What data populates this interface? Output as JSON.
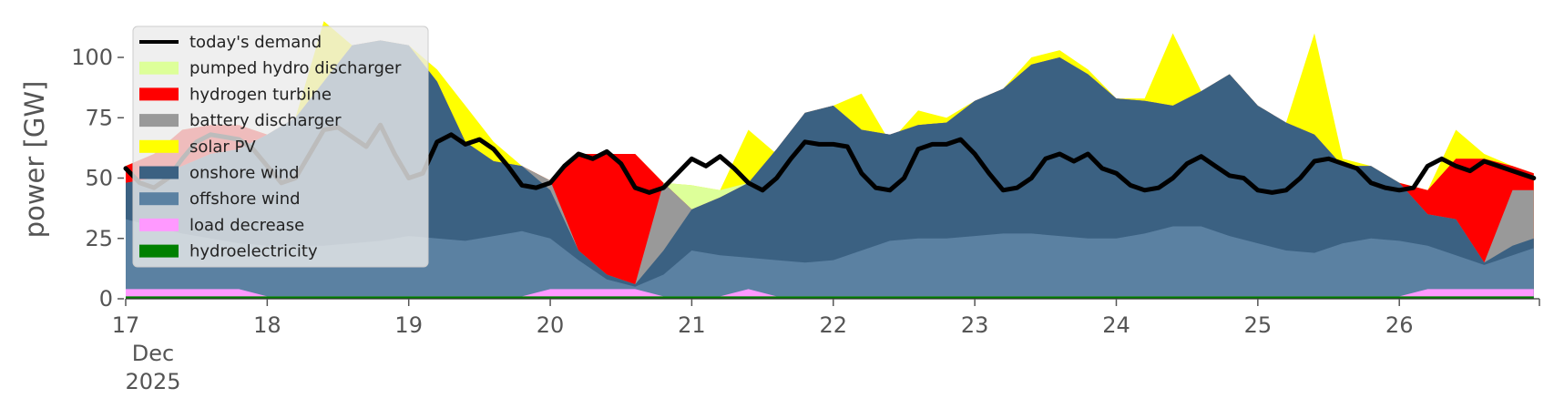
{
  "chart_data": {
    "type": "area",
    "ylabel": "power [GW]",
    "ylim": [
      0,
      120
    ],
    "xlim": [
      "2025-12-17T00:00",
      "2025-12-26T23:59"
    ],
    "y_ticks": [
      "0",
      "25",
      "50",
      "75",
      "100"
    ],
    "x_ticks": [
      "17",
      "18",
      "19",
      "20",
      "21",
      "22",
      "23",
      "24",
      "25",
      "26"
    ],
    "x_first_tick_extra": [
      "Dec",
      "2025"
    ],
    "grid": false,
    "legend": {
      "placement": "top-left",
      "entries": [
        {
          "label": "today's demand",
          "color": "#000000",
          "kind": "line"
        },
        {
          "label": "pumped hydro discharger",
          "color": "#ddff99",
          "kind": "patch"
        },
        {
          "label": "hydrogen turbine",
          "color": "#ff0000",
          "kind": "patch"
        },
        {
          "label": "battery discharger",
          "color": "#999999",
          "kind": "patch"
        },
        {
          "label": "solar PV",
          "color": "#ffff00",
          "kind": "patch"
        },
        {
          "label": "onshore wind",
          "color": "#3b6182",
          "kind": "patch"
        },
        {
          "label": "offshore wind",
          "color": "#5b81a2",
          "kind": "patch"
        },
        {
          "label": "load decrease",
          "color": "#ff99ff",
          "kind": "patch"
        },
        {
          "label": "hydroelectricity",
          "color": "#008000",
          "kind": "patch"
        }
      ]
    },
    "stack_tops_x_days": [
      0,
      0.2,
      0.4,
      0.6,
      0.8,
      1.0,
      1.2,
      1.4,
      1.6,
      1.8,
      2.0,
      2.2,
      2.4,
      2.6,
      2.8,
      3.0,
      3.2,
      3.4,
      3.6,
      3.8,
      4.0,
      4.2,
      4.4,
      4.6,
      4.8,
      5.0,
      5.2,
      5.4,
      5.6,
      5.8,
      6.0,
      6.2,
      6.4,
      6.6,
      6.8,
      7.0,
      7.2,
      7.4,
      7.6,
      7.8,
      8.0,
      8.2,
      8.4,
      8.6,
      8.8,
      9.0,
      9.2,
      9.4,
      9.6,
      9.8,
      9.95
    ],
    "series": [
      {
        "name": "hydroelectricity",
        "color": "#008000",
        "values": [
          1,
          1,
          1,
          1,
          1,
          1,
          1,
          1,
          1,
          1,
          1,
          1,
          1,
          1,
          1,
          1,
          1,
          1,
          1,
          1,
          1,
          1,
          1,
          1,
          1,
          1,
          1,
          1,
          1,
          1,
          1,
          1,
          1,
          1,
          1,
          1,
          1,
          1,
          1,
          1,
          1,
          1,
          1,
          1,
          1,
          1,
          1,
          1,
          1,
          1,
          1
        ]
      },
      {
        "name": "load decrease",
        "color": "#ff99ff",
        "values": [
          4,
          4,
          4,
          4,
          4,
          1,
          1,
          1,
          1,
          1,
          1,
          1,
          1,
          1,
          1,
          4,
          4,
          4,
          4,
          1,
          1,
          1,
          4,
          1,
          1,
          1,
          1,
          1,
          1,
          1,
          1,
          1,
          1,
          1,
          1,
          1,
          1,
          1,
          1,
          1,
          1,
          1,
          1,
          1,
          1,
          1,
          4,
          4,
          4,
          4,
          4
        ]
      },
      {
        "name": "offshore wind",
        "color": "#5b81a2",
        "values": [
          33,
          30,
          27,
          25,
          23,
          22,
          22,
          22,
          23,
          24,
          26,
          25,
          24,
          26,
          28,
          25,
          16,
          8,
          5,
          10,
          20,
          18,
          17,
          16,
          15,
          16,
          20,
          24,
          25,
          25,
          26,
          27,
          27,
          26,
          25,
          25,
          27,
          30,
          30,
          26,
          23,
          20,
          19,
          23,
          25,
          24,
          22,
          18,
          14,
          18,
          21
        ]
      },
      {
        "name": "onshore wind",
        "color": "#3b6182",
        "values": [
          48,
          50,
          55,
          60,
          62,
          68,
          75,
          90,
          105,
          107,
          105,
          90,
          65,
          57,
          55,
          45,
          20,
          10,
          6,
          20,
          37,
          42,
          48,
          62,
          77,
          80,
          70,
          68,
          72,
          73,
          82,
          87,
          97,
          100,
          93,
          83,
          82,
          80,
          86,
          93,
          80,
          73,
          68,
          55,
          55,
          48,
          35,
          33,
          15,
          22,
          25
        ]
      },
      {
        "name": "battery discharger",
        "color": "#999999",
        "values": [
          48,
          50,
          55,
          60,
          62,
          68,
          75,
          90,
          105,
          107,
          105,
          90,
          65,
          57,
          55,
          49,
          20,
          10,
          6,
          48,
          37,
          42,
          48,
          62,
          77,
          80,
          70,
          68,
          72,
          73,
          82,
          87,
          97,
          100,
          93,
          83,
          82,
          80,
          86,
          93,
          80,
          73,
          68,
          55,
          55,
          48,
          35,
          33,
          15,
          45,
          45
        ]
      },
      {
        "name": "hydrogen turbine",
        "color": "#ff0000",
        "values": [
          55,
          60,
          70,
          72,
          72,
          68,
          75,
          90,
          105,
          107,
          105,
          90,
          65,
          57,
          55,
          49,
          60,
          60,
          60,
          48,
          37,
          42,
          48,
          62,
          77,
          80,
          70,
          68,
          72,
          73,
          82,
          87,
          97,
          100,
          93,
          83,
          82,
          80,
          86,
          93,
          80,
          73,
          68,
          55,
          55,
          48,
          45,
          58,
          58,
          55,
          52
        ]
      },
      {
        "name": "pumped hydro discharger",
        "color": "#ddff99",
        "values": [
          55,
          60,
          70,
          72,
          72,
          68,
          75,
          90,
          105,
          107,
          105,
          90,
          65,
          57,
          55,
          49,
          60,
          60,
          60,
          48,
          47,
          45,
          48,
          62,
          77,
          80,
          70,
          68,
          72,
          73,
          82,
          87,
          97,
          100,
          93,
          83,
          82,
          80,
          86,
          93,
          80,
          73,
          68,
          55,
          55,
          48,
          45,
          58,
          58,
          55,
          52
        ]
      },
      {
        "name": "solar PV",
        "color": "#ffff00",
        "values": [
          55,
          60,
          70,
          72,
          72,
          68,
          75,
          115,
          105,
          107,
          105,
          95,
          80,
          65,
          55,
          49,
          60,
          60,
          60,
          48,
          47,
          45,
          70,
          60,
          77,
          80,
          85,
          65,
          78,
          75,
          82,
          87,
          100,
          103,
          95,
          83,
          83,
          110,
          86,
          93,
          80,
          73,
          110,
          58,
          55,
          48,
          45,
          70,
          60,
          55,
          52
        ]
      }
    ],
    "demand_line": {
      "name": "today's demand",
      "color": "#000000",
      "x_days": [
        0,
        0.1,
        0.2,
        0.3,
        0.4,
        0.5,
        0.6,
        0.7,
        0.8,
        0.9,
        1.0,
        1.1,
        1.2,
        1.3,
        1.4,
        1.5,
        1.6,
        1.7,
        1.8,
        1.9,
        2.0,
        2.1,
        2.2,
        2.3,
        2.4,
        2.5,
        2.6,
        2.7,
        2.8,
        2.9,
        3.0,
        3.1,
        3.2,
        3.3,
        3.4,
        3.5,
        3.6,
        3.7,
        3.8,
        3.9,
        4.0,
        4.1,
        4.2,
        4.3,
        4.4,
        4.5,
        4.6,
        4.7,
        4.8,
        4.9,
        5.0,
        5.1,
        5.2,
        5.3,
        5.4,
        5.5,
        5.6,
        5.7,
        5.8,
        5.9,
        6.0,
        6.1,
        6.2,
        6.3,
        6.4,
        6.5,
        6.6,
        6.7,
        6.8,
        6.9,
        7.0,
        7.1,
        7.2,
        7.3,
        7.4,
        7.5,
        7.6,
        7.7,
        7.8,
        7.9,
        8.0,
        8.1,
        8.2,
        8.3,
        8.4,
        8.5,
        8.6,
        8.7,
        8.8,
        8.9,
        9.0,
        9.1,
        9.2,
        9.3,
        9.4,
        9.5,
        9.6,
        9.7,
        9.8,
        9.95
      ],
      "values": [
        54,
        48,
        46,
        50,
        58,
        65,
        68,
        67,
        66,
        62,
        55,
        48,
        50,
        60,
        70,
        71,
        67,
        63,
        72,
        60,
        50,
        52,
        65,
        68,
        64,
        66,
        62,
        55,
        47,
        46,
        48,
        55,
        60,
        58,
        61,
        56,
        46,
        44,
        46,
        52,
        58,
        55,
        59,
        54,
        48,
        45,
        50,
        58,
        65,
        64,
        64,
        63,
        52,
        46,
        45,
        50,
        62,
        64,
        64,
        66,
        60,
        52,
        45,
        46,
        50,
        58,
        60,
        57,
        60,
        54,
        52,
        47,
        45,
        46,
        50,
        56,
        59,
        55,
        51,
        50,
        45,
        44,
        45,
        50,
        57,
        58,
        56,
        54,
        48,
        46,
        45,
        46,
        55,
        58,
        55,
        53,
        57,
        55,
        53,
        50
      ]
    }
  }
}
